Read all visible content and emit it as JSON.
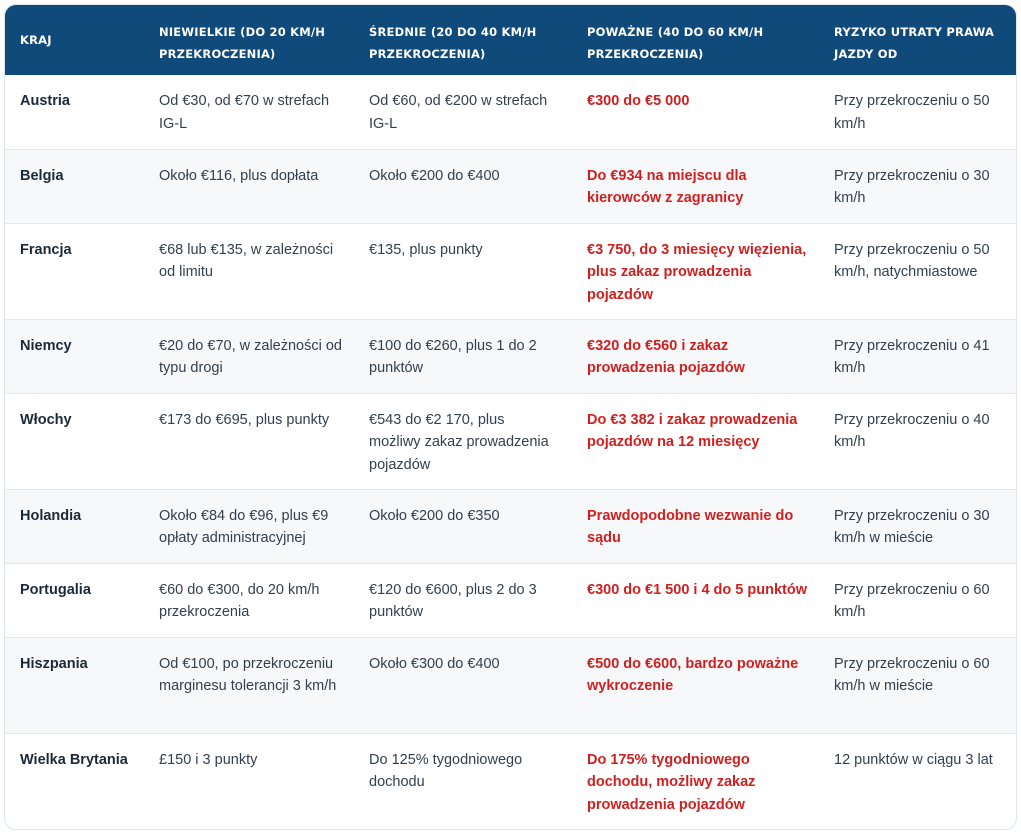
{
  "table": {
    "headers": [
      "KRAJ",
      "NIEWIELKIE (DO 20 KM/H PRZEKROCZENIA)",
      "ŚREDNIE (20 DO 40 KM/H PRZEKROCZENIA)",
      "POWAŻNE (40 DO 60 KM/H PRZEKROCZENIA)",
      "RYZYKO UTRATY PRAWA JAZDY OD"
    ],
    "rows": [
      [
        "Austria",
        "Od €30, od €70 w strefach IG-L",
        "Od €60, od €200 w strefach IG-L",
        "€300 do €5 000",
        "Przy przekroczeniu o 50 km/h"
      ],
      [
        "Belgia",
        "Około €116, plus dopłata",
        "Około €200 do €400",
        "Do €934 na miejscu dla kierowców z zagranicy",
        "Przy przekroczeniu o 30 km/h"
      ],
      [
        "Francja",
        "€68 lub €135, w zależności od limitu",
        "€135, plus punkty",
        "€3 750, do 3 miesięcy więzienia, plus zakaz prowadzenia pojazdów",
        "Przy przekroczeniu o 50 km/h, natychmiastowe"
      ],
      [
        "Niemcy",
        "€20 do €70, w zależności od typu drogi",
        "€100 do €260, plus 1 do 2 punktów",
        "€320 do €560 i zakaz prowadzenia pojazdów",
        "Przy przekroczeniu o 41 km/h"
      ],
      [
        "Włochy",
        "€173 do €695, plus punkty",
        "€543 do €2 170, plus możliwy zakaz prowadzenia pojazdów",
        "Do €3 382 i zakaz prowadzenia pojazdów na 12 miesięcy",
        "Przy przekroczeniu o 40 km/h"
      ],
      [
        "Holandia",
        "Około €84 do €96, plus €9 opłaty administracyjnej",
        "Około €200 do €350",
        "Prawdopodobne wezwanie do sądu",
        "Przy przekroczeniu o 30 km/h w mieście"
      ],
      [
        "Portugalia",
        "€60 do €300, do 20 km/h przekroczenia",
        "€120 do €600, plus 2 do 3 punktów",
        "€300 do €1 500 i 4 do 5 punktów",
        "Przy przekroczeniu o 60 km/h"
      ],
      [
        "Hiszpania",
        "Od €100, po przekroczeniu marginesu tolerancji 3 km/h",
        "Około €300 do €400",
        "€500 do €600, bardzo poważne wykroczenie",
        "Przy przekroczeniu o 60 km/h w mieście"
      ],
      [
        "Wielka Brytania",
        "£150 i 3 punkty",
        "Do 125% tygodniowego dochodu",
        "Do 175% tygodniowego dochodu, możliwy zakaz prowadzenia pojazdów",
        "12 punktów w ciągu 3 lat"
      ]
    ]
  },
  "colors": {
    "header_bg": "#0f4a7a",
    "severe_text": "#d11f1f"
  }
}
